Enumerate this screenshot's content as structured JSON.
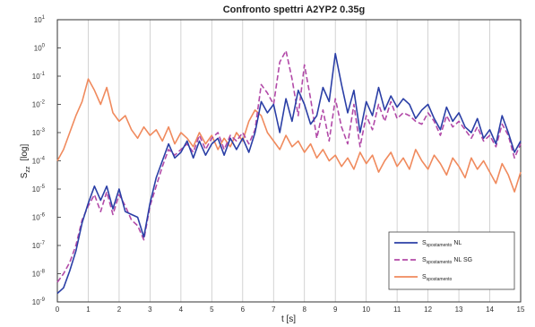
{
  "chart_data": {
    "type": "line",
    "title": "Confronto spettri A2YP2 0.35g",
    "xlabel": "t [s]",
    "ylabel": "S",
    "ylabel_sub": "zz",
    "ylabel_suffix": "[log]",
    "xlim": [
      0,
      15
    ],
    "ylim_log10": [
      -9,
      1
    ],
    "x_ticks": [
      "0",
      "1",
      "2",
      "3",
      "4",
      "5",
      "6",
      "7",
      "8",
      "9",
      "10",
      "11",
      "12",
      "13",
      "14",
      "15"
    ],
    "y_ticks": [
      {
        "base": "10",
        "exp": "-9"
      },
      {
        "base": "10",
        "exp": "-8"
      },
      {
        "base": "10",
        "exp": "-7"
      },
      {
        "base": "10",
        "exp": "-6"
      },
      {
        "base": "10",
        "exp": "-5"
      },
      {
        "base": "10",
        "exp": "-4"
      },
      {
        "base": "10",
        "exp": "-3"
      },
      {
        "base": "10",
        "exp": "-2"
      },
      {
        "base": "10",
        "exp": "-1"
      },
      {
        "base": "10",
        "exp": "0"
      },
      {
        "base": "10",
        "exp": "1"
      }
    ],
    "grid": "vertical",
    "legend_position": "bottom-right",
    "series": [
      {
        "name": "S",
        "name_sub": "spostamento",
        "name_suffix": "NL",
        "color": "#2b3fa6",
        "dash": "solid",
        "x": [
          0,
          0.2,
          0.4,
          0.6,
          0.8,
          1.0,
          1.2,
          1.4,
          1.6,
          1.8,
          2.0,
          2.2,
          2.4,
          2.6,
          2.8,
          3.0,
          3.2,
          3.4,
          3.6,
          3.8,
          4.0,
          4.2,
          4.4,
          4.6,
          4.8,
          5.0,
          5.2,
          5.4,
          5.6,
          5.8,
          6.0,
          6.2,
          6.4,
          6.6,
          6.8,
          7.0,
          7.2,
          7.4,
          7.6,
          7.8,
          8.0,
          8.2,
          8.4,
          8.6,
          8.8,
          9.0,
          9.2,
          9.4,
          9.6,
          9.8,
          10.0,
          10.2,
          10.4,
          10.6,
          10.8,
          11.0,
          11.2,
          11.4,
          11.6,
          11.8,
          12.0,
          12.2,
          12.4,
          12.6,
          12.8,
          13.0,
          13.2,
          13.4,
          13.6,
          13.8,
          14.0,
          14.2,
          14.4,
          14.6,
          14.8,
          15.0
        ],
        "y_log10": [
          -8.7,
          -8.5,
          -7.9,
          -7.2,
          -6.2,
          -5.5,
          -4.9,
          -5.4,
          -4.9,
          -5.7,
          -5.0,
          -5.8,
          -5.9,
          -6.0,
          -6.7,
          -5.5,
          -4.6,
          -4.0,
          -3.4,
          -3.9,
          -3.7,
          -3.3,
          -3.9,
          -3.3,
          -3.8,
          -3.4,
          -3.2,
          -3.8,
          -3.2,
          -3.6,
          -3.2,
          -3.7,
          -3.0,
          -1.9,
          -2.3,
          -2.0,
          -3.0,
          -1.8,
          -2.6,
          -1.5,
          -2.0,
          -2.7,
          -2.4,
          -1.4,
          -1.9,
          -0.2,
          -1.3,
          -2.3,
          -1.5,
          -3.0,
          -1.9,
          -2.4,
          -1.4,
          -2.2,
          -1.7,
          -2.1,
          -1.8,
          -2.0,
          -2.5,
          -2.2,
          -2.0,
          -2.5,
          -2.9,
          -2.1,
          -2.6,
          -2.3,
          -2.8,
          -3.0,
          -2.5,
          -3.2,
          -2.9,
          -3.4,
          -2.4,
          -3.0,
          -3.7,
          -3.3
        ]
      },
      {
        "name": "S",
        "name_sub": "spostamento",
        "name_suffix": "NL SG",
        "color": "#b24aa8",
        "dash": "6,3",
        "x": [
          0,
          0.2,
          0.4,
          0.6,
          0.8,
          1.0,
          1.2,
          1.4,
          1.6,
          1.8,
          2.0,
          2.2,
          2.4,
          2.6,
          2.8,
          3.0,
          3.2,
          3.4,
          3.6,
          3.8,
          4.0,
          4.2,
          4.4,
          4.6,
          4.8,
          5.0,
          5.2,
          5.4,
          5.6,
          5.8,
          6.0,
          6.2,
          6.4,
          6.6,
          6.8,
          7.0,
          7.2,
          7.4,
          7.6,
          7.8,
          8.0,
          8.2,
          8.4,
          8.6,
          8.8,
          9.0,
          9.2,
          9.4,
          9.6,
          9.8,
          10.0,
          10.2,
          10.4,
          10.6,
          10.8,
          11.0,
          11.2,
          11.4,
          11.6,
          11.8,
          12.0,
          12.2,
          12.4,
          12.6,
          12.8,
          13.0,
          13.2,
          13.4,
          13.6,
          13.8,
          14.0,
          14.2,
          14.4,
          14.6,
          14.8,
          15.0
        ],
        "y_log10": [
          -8.3,
          -8.0,
          -7.6,
          -7.0,
          -6.1,
          -5.6,
          -5.2,
          -5.8,
          -5.1,
          -5.9,
          -5.2,
          -5.6,
          -6.1,
          -6.3,
          -6.8,
          -5.6,
          -4.9,
          -4.2,
          -3.6,
          -3.8,
          -3.6,
          -3.4,
          -3.7,
          -3.1,
          -3.6,
          -3.2,
          -3.0,
          -3.6,
          -3.1,
          -3.3,
          -3.0,
          -3.4,
          -2.9,
          -1.3,
          -1.6,
          -2.0,
          -0.5,
          -0.1,
          -1.1,
          -2.4,
          -0.6,
          -1.8,
          -3.2,
          -2.2,
          -3.3,
          -1.8,
          -2.8,
          -3.4,
          -2.0,
          -3.5,
          -2.4,
          -2.9,
          -2.0,
          -2.6,
          -1.9,
          -2.5,
          -2.3,
          -2.4,
          -2.6,
          -2.7,
          -2.3,
          -2.6,
          -3.1,
          -2.4,
          -2.8,
          -2.6,
          -2.9,
          -3.2,
          -2.8,
          -3.3,
          -3.1,
          -3.5,
          -2.7,
          -3.1,
          -3.9,
          -3.4
        ]
      },
      {
        "name": "S",
        "name_sub": "spostamento",
        "name_suffix": "",
        "color": "#f08a5d",
        "dash": "solid",
        "x": [
          0,
          0.2,
          0.4,
          0.6,
          0.8,
          1.0,
          1.2,
          1.4,
          1.6,
          1.8,
          2.0,
          2.2,
          2.4,
          2.6,
          2.8,
          3.0,
          3.2,
          3.4,
          3.6,
          3.8,
          4.0,
          4.2,
          4.4,
          4.6,
          4.8,
          5.0,
          5.2,
          5.4,
          5.6,
          5.8,
          6.0,
          6.2,
          6.4,
          6.6,
          6.8,
          7.0,
          7.2,
          7.4,
          7.6,
          7.8,
          8.0,
          8.2,
          8.4,
          8.6,
          8.8,
          9.0,
          9.2,
          9.4,
          9.6,
          9.8,
          10.0,
          10.2,
          10.4,
          10.6,
          10.8,
          11.0,
          11.2,
          11.4,
          11.6,
          11.8,
          12.0,
          12.2,
          12.4,
          12.6,
          12.8,
          13.0,
          13.2,
          13.4,
          13.6,
          13.8,
          14.0,
          14.2,
          14.4,
          14.6,
          14.8,
          15.0
        ],
        "y_log10": [
          -4.0,
          -3.6,
          -3.0,
          -2.4,
          -1.9,
          -1.1,
          -1.5,
          -2.0,
          -1.4,
          -2.3,
          -2.6,
          -2.4,
          -2.9,
          -3.2,
          -2.8,
          -3.1,
          -2.9,
          -3.3,
          -2.8,
          -3.4,
          -3.0,
          -3.2,
          -3.5,
          -3.0,
          -3.4,
          -3.1,
          -3.6,
          -3.2,
          -3.5,
          -3.0,
          -3.3,
          -2.6,
          -2.2,
          -2.4,
          -3.0,
          -3.3,
          -3.6,
          -3.1,
          -3.5,
          -3.3,
          -3.7,
          -3.4,
          -3.9,
          -3.6,
          -4.0,
          -3.8,
          -4.2,
          -3.9,
          -4.3,
          -3.7,
          -4.1,
          -3.8,
          -4.4,
          -4.0,
          -3.7,
          -4.2,
          -3.9,
          -4.3,
          -3.6,
          -4.0,
          -4.3,
          -3.8,
          -4.1,
          -4.5,
          -3.9,
          -4.2,
          -4.6,
          -3.9,
          -4.3,
          -4.0,
          -4.4,
          -4.8,
          -4.1,
          -4.5,
          -5.1,
          -4.4
        ]
      }
    ]
  }
}
